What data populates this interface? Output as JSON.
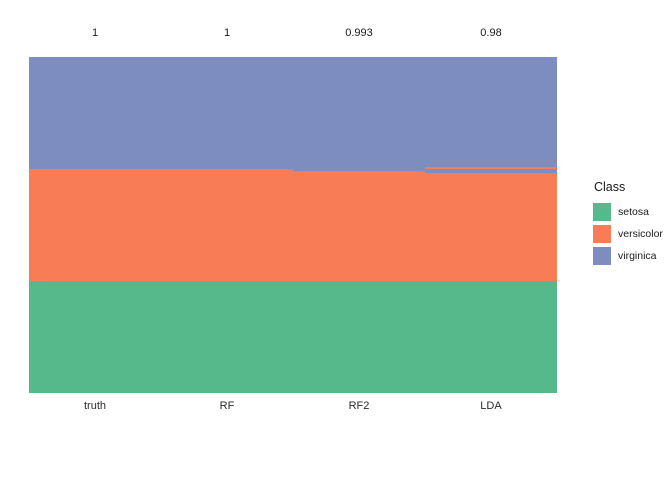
{
  "chart_data": {
    "type": "bar",
    "subtype": "stacked-class-prediction-columns",
    "title": "",
    "xlabel": "",
    "ylabel": "",
    "grid": false,
    "legend_position": "right",
    "samples_per_column": 150,
    "class_colors": {
      "setosa": "#56b98c",
      "versicolor": "#f87c55",
      "virginica": "#7e8dc0"
    },
    "columns": [
      {
        "name": "truth",
        "accuracy_label": "1",
        "accuracy": 1.0,
        "segments": [
          {
            "class": "virginica",
            "count": 50
          },
          {
            "class": "versicolor",
            "count": 50
          },
          {
            "class": "setosa",
            "count": 50
          }
        ]
      },
      {
        "name": "RF",
        "accuracy_label": "1",
        "accuracy": 1.0,
        "segments": [
          {
            "class": "virginica",
            "count": 50
          },
          {
            "class": "versicolor",
            "count": 50
          },
          {
            "class": "setosa",
            "count": 50
          }
        ]
      },
      {
        "name": "RF2",
        "accuracy_label": "0.993",
        "accuracy": 0.993,
        "segments": [
          {
            "class": "virginica",
            "count": 51
          },
          {
            "class": "versicolor",
            "count": 49
          },
          {
            "class": "setosa",
            "count": 50
          }
        ]
      },
      {
        "name": "LDA",
        "accuracy_label": "0.98",
        "accuracy": 0.98,
        "segments": [
          {
            "class": "virginica",
            "count": 49
          },
          {
            "class": "versicolor",
            "count": 1
          },
          {
            "class": "virginica",
            "count": 2
          },
          {
            "class": "versicolor",
            "count": 48
          },
          {
            "class": "setosa",
            "count": 50
          }
        ]
      }
    ]
  },
  "legend": {
    "title": "Class",
    "items": [
      {
        "class": "setosa",
        "label": "setosa"
      },
      {
        "class": "versicolor",
        "label": "versicolor"
      },
      {
        "class": "virginica",
        "label": "virginica"
      }
    ]
  }
}
